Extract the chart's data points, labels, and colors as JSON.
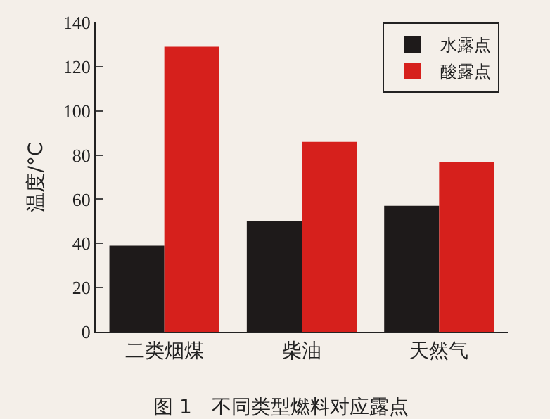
{
  "chart_data": {
    "type": "bar",
    "ylabel": "温度/°C",
    "categories": [
      "二类烟煤",
      "柴油",
      "天然气"
    ],
    "series": [
      {
        "name": "水露点",
        "color": "#1e1a1a",
        "values": [
          39,
          50,
          57
        ]
      },
      {
        "name": "酸露点",
        "color": "#d6201c",
        "values": [
          129,
          86,
          77
        ]
      }
    ],
    "ylim": [
      0,
      140
    ],
    "yticks": [
      0,
      20,
      40,
      60,
      80,
      100,
      120,
      140
    ],
    "grid": false,
    "legend": "top right",
    "annotations": [
      "图 1　不同类型燃料对应露点"
    ]
  }
}
